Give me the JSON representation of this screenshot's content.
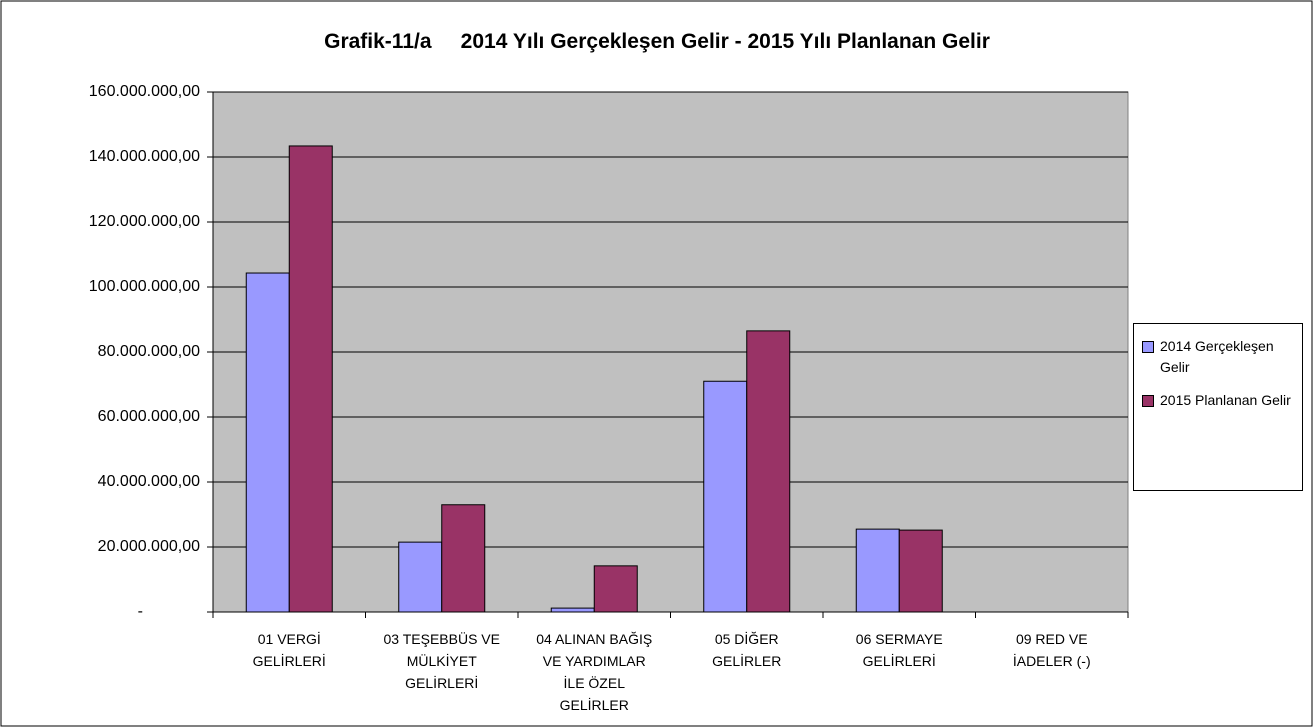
{
  "chart_data": {
    "type": "bar",
    "title": "Grafik-11/a     2014 Yılı Gerçekleşen Gelir - 2015 Yılı Planlanan Gelir",
    "categories": [
      "01  VERGİ GELİRLERİ",
      "03  TEŞEBBÜS VE MÜLKİYET GELİRLERİ",
      "04  ALINAN BAĞIŞ VE YARDIMLAR İLE ÖZEL GELİRLER",
      "05  DİĞER GELİRLER",
      "06  SERMAYE GELİRLERİ",
      "09  RED VE İADELER (-)"
    ],
    "series": [
      {
        "name": "2014 Gerçekleşen Gelir",
        "color": "#9999ff",
        "values": [
          104300000,
          21500000,
          1200000,
          71000000,
          25500000,
          0
        ]
      },
      {
        "name": "2015 Planlanan Gelir",
        "color": "#993366",
        "values": [
          143400000,
          33000000,
          14200000,
          86500000,
          25200000,
          0
        ]
      }
    ],
    "ylim": [
      0,
      160000000
    ],
    "yticks": [
      {
        "value": 0,
        "label": "-"
      },
      {
        "value": 20000000,
        "label": "20.000.000,00"
      },
      {
        "value": 40000000,
        "label": "40.000.000,00"
      },
      {
        "value": 60000000,
        "label": "60.000.000,00"
      },
      {
        "value": 80000000,
        "label": "80.000.000,00"
      },
      {
        "value": 100000000,
        "label": "100.000.000,00"
      },
      {
        "value": 120000000,
        "label": "120.000.000,00"
      },
      {
        "value": 140000000,
        "label": "140.000.000,00"
      },
      {
        "value": 160000000,
        "label": "160.000.000,00"
      }
    ],
    "grid": true,
    "legend": "right"
  }
}
